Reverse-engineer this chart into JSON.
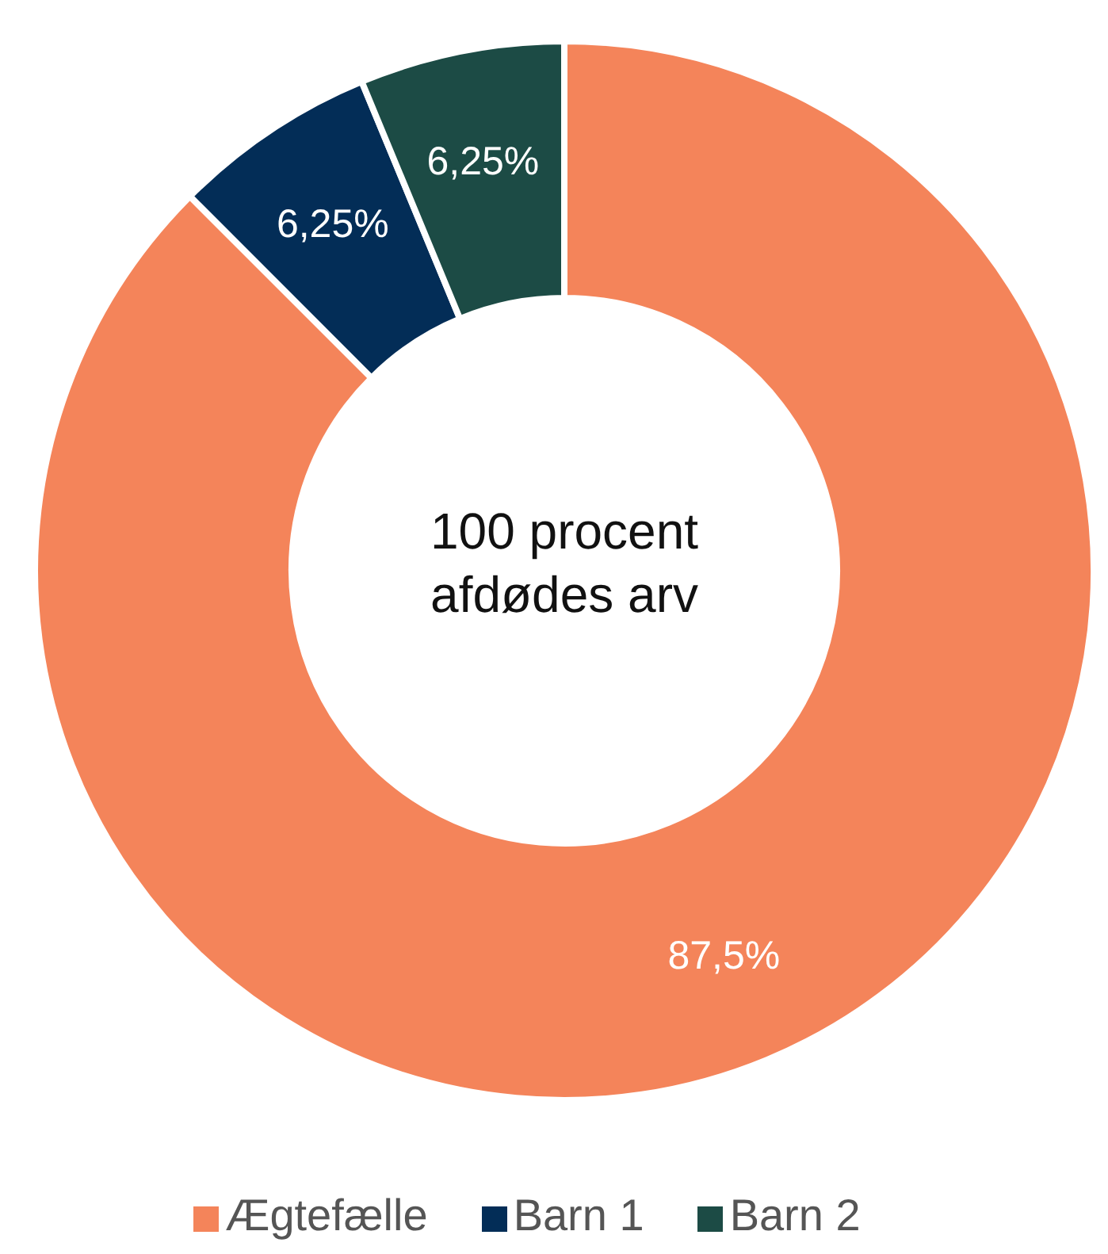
{
  "chart_data": {
    "type": "donut",
    "categories": [
      "Ægtefælle",
      "Barn 1",
      "Barn 2"
    ],
    "values": [
      87.5,
      6.25,
      6.25
    ],
    "colors": [
      "#f4845a",
      "#032d57",
      "#1c4b45"
    ],
    "value_labels": [
      "87,5%",
      "6,25%",
      "6,25%"
    ],
    "annotations": [
      "100 procent afdødes arv"
    ],
    "legend": "bottom"
  }
}
